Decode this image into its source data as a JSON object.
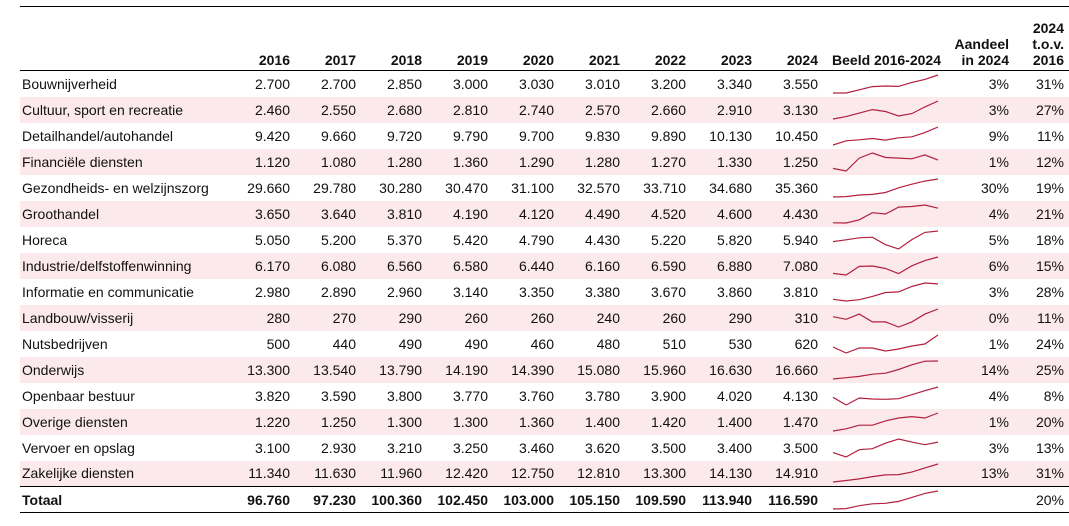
{
  "chart_data": {
    "type": "table",
    "title": "",
    "columns": {
      "name": "",
      "years": [
        "2016",
        "2017",
        "2018",
        "2019",
        "2020",
        "2021",
        "2022",
        "2023",
        "2024"
      ],
      "sparkline": "Beeld 2016-2024",
      "share": "Aandeel in 2024",
      "change": "2024 t.o.v. 2016"
    },
    "rows": [
      {
        "name": "Bouwnijverheid",
        "display": [
          "2.700",
          "2.700",
          "2.850",
          "3.000",
          "3.030",
          "3.010",
          "3.200",
          "3.340",
          "3.550"
        ],
        "values": [
          2700,
          2700,
          2850,
          3000,
          3030,
          3010,
          3200,
          3340,
          3550
        ],
        "share": "3%",
        "change": "31%"
      },
      {
        "name": "Cultuur, sport en recreatie",
        "display": [
          "2.460",
          "2.550",
          "2.680",
          "2.810",
          "2.740",
          "2.570",
          "2.660",
          "2.910",
          "3.130"
        ],
        "values": [
          2460,
          2550,
          2680,
          2810,
          2740,
          2570,
          2660,
          2910,
          3130
        ],
        "share": "3%",
        "change": "27%"
      },
      {
        "name": "Detailhandel/autohandel",
        "display": [
          "9.420",
          "9.660",
          "9.720",
          "9.790",
          "9.700",
          "9.830",
          "9.890",
          "10.130",
          "10.450"
        ],
        "values": [
          9420,
          9660,
          9720,
          9790,
          9700,
          9830,
          9890,
          10130,
          10450
        ],
        "share": "9%",
        "change": "11%"
      },
      {
        "name": "Financiële diensten",
        "display": [
          "1.120",
          "1.080",
          "1.280",
          "1.360",
          "1.290",
          "1.280",
          "1.270",
          "1.330",
          "1.250"
        ],
        "values": [
          1120,
          1080,
          1280,
          1360,
          1290,
          1280,
          1270,
          1330,
          1250
        ],
        "share": "1%",
        "change": "12%"
      },
      {
        "name": "Gezondheids- en welzijnszorg",
        "display": [
          "29.660",
          "29.780",
          "30.280",
          "30.470",
          "31.100",
          "32.570",
          "33.710",
          "34.680",
          "35.360"
        ],
        "values": [
          29660,
          29780,
          30280,
          30470,
          31100,
          32570,
          33710,
          34680,
          35360
        ],
        "share": "30%",
        "change": "19%"
      },
      {
        "name": "Groothandel",
        "display": [
          "3.650",
          "3.640",
          "3.810",
          "4.190",
          "4.120",
          "4.490",
          "4.520",
          "4.600",
          "4.430"
        ],
        "values": [
          3650,
          3640,
          3810,
          4190,
          4120,
          4490,
          4520,
          4600,
          4430
        ],
        "share": "4%",
        "change": "21%"
      },
      {
        "name": "Horeca",
        "display": [
          "5.050",
          "5.200",
          "5.370",
          "5.420",
          "4.790",
          "4.430",
          "5.220",
          "5.820",
          "5.940"
        ],
        "values": [
          5050,
          5200,
          5370,
          5420,
          4790,
          4430,
          5220,
          5820,
          5940
        ],
        "share": "5%",
        "change": "18%"
      },
      {
        "name": "Industrie/delfstoffenwinning",
        "display": [
          "6.170",
          "6.080",
          "6.560",
          "6.580",
          "6.440",
          "6.160",
          "6.590",
          "6.880",
          "7.080"
        ],
        "values": [
          6170,
          6080,
          6560,
          6580,
          6440,
          6160,
          6590,
          6880,
          7080
        ],
        "share": "6%",
        "change": "15%"
      },
      {
        "name": "Informatie en communicatie",
        "display": [
          "2.980",
          "2.890",
          "2.960",
          "3.140",
          "3.350",
          "3.380",
          "3.670",
          "3.860",
          "3.810"
        ],
        "values": [
          2980,
          2890,
          2960,
          3140,
          3350,
          3380,
          3670,
          3860,
          3810
        ],
        "share": "3%",
        "change": "28%"
      },
      {
        "name": "Landbouw/visserij",
        "display": [
          "280",
          "270",
          "290",
          "260",
          "260",
          "240",
          "260",
          "290",
          "310"
        ],
        "values": [
          280,
          270,
          290,
          260,
          260,
          240,
          260,
          290,
          310
        ],
        "share": "0%",
        "change": "11%"
      },
      {
        "name": "Nutsbedrijven",
        "display": [
          "500",
          "440",
          "490",
          "490",
          "460",
          "480",
          "510",
          "530",
          "620"
        ],
        "values": [
          500,
          440,
          490,
          490,
          460,
          480,
          510,
          530,
          620
        ],
        "share": "1%",
        "change": "24%"
      },
      {
        "name": "Onderwijs",
        "display": [
          "13.300",
          "13.540",
          "13.790",
          "14.190",
          "14.390",
          "15.080",
          "15.960",
          "16.630",
          "16.660"
        ],
        "values": [
          13300,
          13540,
          13790,
          14190,
          14390,
          15080,
          15960,
          16630,
          16660
        ],
        "share": "14%",
        "change": "25%"
      },
      {
        "name": "Openbaar bestuur",
        "display": [
          "3.820",
          "3.590",
          "3.800",
          "3.770",
          "3.760",
          "3.780",
          "3.900",
          "4.020",
          "4.130"
        ],
        "values": [
          3820,
          3590,
          3800,
          3770,
          3760,
          3780,
          3900,
          4020,
          4130
        ],
        "share": "4%",
        "change": "8%"
      },
      {
        "name": "Overige diensten",
        "display": [
          "1.220",
          "1.250",
          "1.300",
          "1.300",
          "1.360",
          "1.400",
          "1.420",
          "1.400",
          "1.470"
        ],
        "values": [
          1220,
          1250,
          1300,
          1300,
          1360,
          1400,
          1420,
          1400,
          1470
        ],
        "share": "1%",
        "change": "20%"
      },
      {
        "name": "Vervoer en opslag",
        "display": [
          "3.100",
          "2.930",
          "3.210",
          "3.250",
          "3.460",
          "3.620",
          "3.500",
          "3.400",
          "3.500"
        ],
        "values": [
          3100,
          2930,
          3210,
          3250,
          3460,
          3620,
          3500,
          3400,
          3500
        ],
        "share": "3%",
        "change": "13%"
      },
      {
        "name": "Zakelijke diensten",
        "display": [
          "11.340",
          "11.630",
          "11.960",
          "12.420",
          "12.750",
          "12.810",
          "13.300",
          "14.130",
          "14.910"
        ],
        "values": [
          11340,
          11630,
          11960,
          12420,
          12750,
          12810,
          13300,
          14130,
          14910
        ],
        "share": "13%",
        "change": "31%"
      }
    ],
    "total": {
      "name": "Totaal",
      "display": [
        "96.760",
        "97.230",
        "100.360",
        "102.450",
        "103.000",
        "105.150",
        "109.590",
        "113.940",
        "116.590"
      ],
      "values": [
        96760,
        97230,
        100360,
        102450,
        103000,
        105150,
        109590,
        113940,
        116590
      ],
      "share": "",
      "change": "20%"
    },
    "colors": {
      "sparkline": "#b3203f",
      "band": "#fbe9ec"
    }
  }
}
